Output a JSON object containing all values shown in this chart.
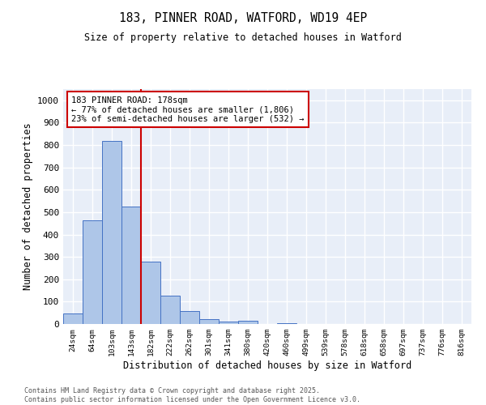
{
  "title": "183, PINNER ROAD, WATFORD, WD19 4EP",
  "subtitle": "Size of property relative to detached houses in Watford",
  "xlabel": "Distribution of detached houses by size in Watford",
  "ylabel": "Number of detached properties",
  "bar_values": [
    46,
    462,
    818,
    525,
    278,
    127,
    58,
    22,
    11,
    13,
    0,
    5,
    0,
    0,
    0,
    0,
    0,
    0,
    0,
    0,
    0
  ],
  "bin_labels": [
    "24sqm",
    "64sqm",
    "103sqm",
    "143sqm",
    "182sqm",
    "222sqm",
    "262sqm",
    "301sqm",
    "341sqm",
    "380sqm",
    "420sqm",
    "460sqm",
    "499sqm",
    "539sqm",
    "578sqm",
    "618sqm",
    "658sqm",
    "697sqm",
    "737sqm",
    "776sqm",
    "816sqm"
  ],
  "bar_color": "#aec6e8",
  "bar_edge_color": "#4472c4",
  "background_color": "#e8eef8",
  "grid_color": "#ffffff",
  "vline_x_index": 4,
  "vline_color": "#cc0000",
  "annotation_text": "183 PINNER ROAD: 178sqm\n← 77% of detached houses are smaller (1,806)\n23% of semi-detached houses are larger (532) →",
  "annotation_box_color": "#ffffff",
  "annotation_box_edge": "#cc0000",
  "footer_text": "Contains HM Land Registry data © Crown copyright and database right 2025.\nContains public sector information licensed under the Open Government Licence v3.0.",
  "ylim": [
    0,
    1050
  ],
  "yticks": [
    0,
    100,
    200,
    300,
    400,
    500,
    600,
    700,
    800,
    900,
    1000
  ]
}
